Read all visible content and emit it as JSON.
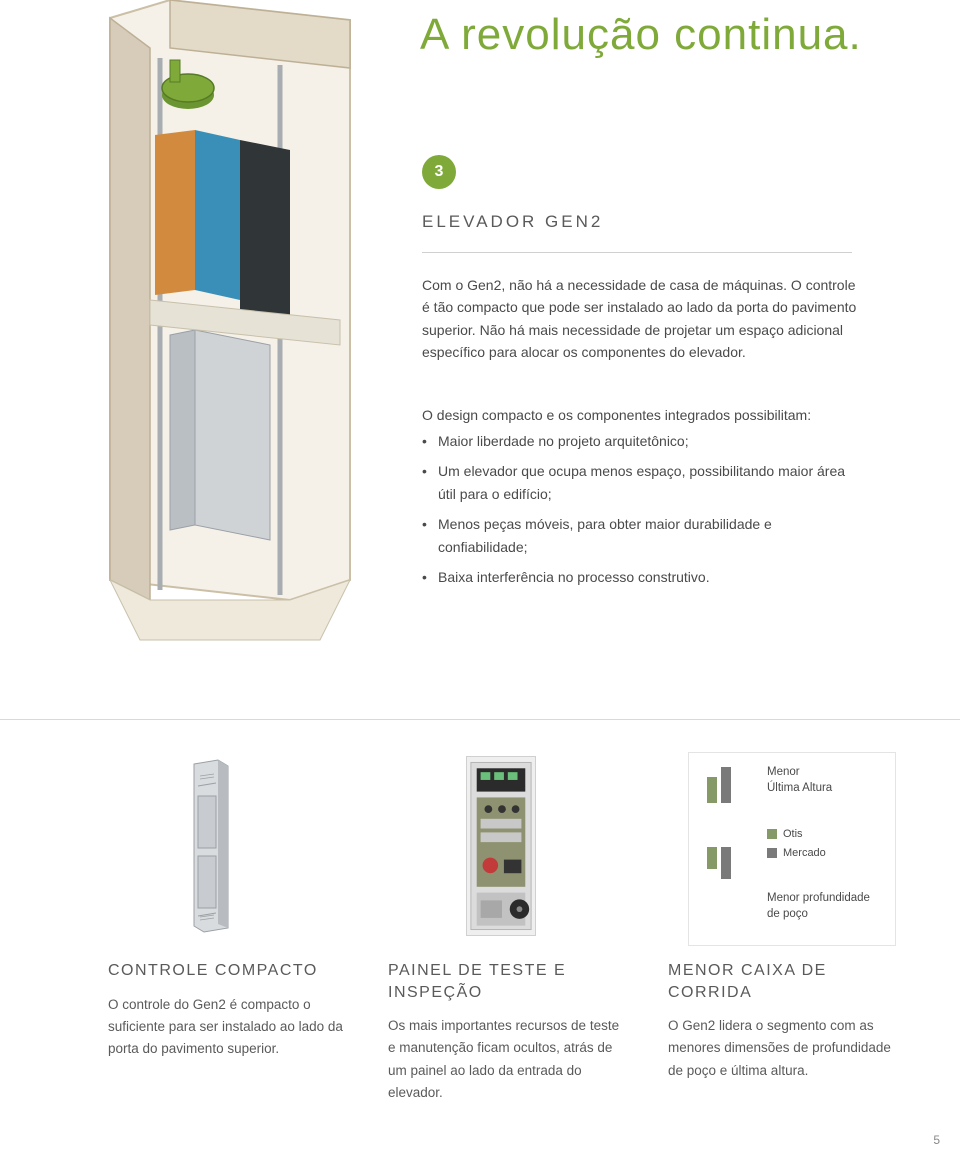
{
  "colors": {
    "accent": "#7faa3a",
    "accent_dark": "#6a9530",
    "heading": "#4a4a4a",
    "body": "#5a5a5a",
    "orange": "#d78a3a",
    "blue": "#3aa0c8",
    "beige_wall": "#d6ccb9",
    "beige_wall_dark": "#c9bea6",
    "elevator_blue": "#3a8fb8",
    "elevator_orange": "#d28b3e",
    "elevator_gray": "#cfd3d6",
    "panel_border": "#d0d0d0",
    "card_border": "#e4e4e4",
    "divider": "#d0d0d0",
    "otis_swatch": "#869a68",
    "mercado_swatch": "#7a7a7a"
  },
  "hero": {
    "title": "A revolução continua.",
    "badge": "3",
    "subtitle": "ELEVADOR GEN2",
    "intro": "Com o Gen2, não há a necessidade de casa de máquinas. O controle é tão compacto que pode ser instalado ao lado da porta do pavimento superior. Não há mais necessidade de projetar um espaço adicional específico para alocar os componentes do elevador.",
    "design_heading": "O design compacto e os componentes integrados possibilitam:",
    "bullets": [
      "Maior liberdade no projeto arquitetônico;",
      "Um elevador que ocupa menos espaço, possibilitando maior área útil para o edifício;",
      "Menos peças móveis, para obter maior durabilidade e confiabilidade;",
      "Baixa interferência no processo construtivo."
    ]
  },
  "dim_card": {
    "top_label_l1": "Menor",
    "top_label_l2": "Última Altura",
    "legend_otis": "Otis",
    "legend_mercado": "Mercado",
    "bottom_label_l1": "Menor profundidade",
    "bottom_label_l2": "de poço",
    "bars": {
      "top_otis_h": 26,
      "top_mercado_h": 36,
      "bottom_otis_h": 22,
      "bottom_mercado_h": 32
    }
  },
  "columns": [
    {
      "title": "CONTROLE COMPACTO",
      "body": "O controle do Gen2 é compacto o suficiente para ser instalado ao lado da porta do pavimento superior."
    },
    {
      "title": "PAINEL DE TESTE E INSPEÇÃO",
      "body": "Os mais importantes recursos de teste e manutenção ficam ocultos, atrás de um painel ao lado da entrada do elevador."
    },
    {
      "title": "MENOR CAIXA DE CORRIDA",
      "body": "O Gen2 lidera o segmento com as menores dimensões de profundidade de poço e última altura."
    }
  ],
  "page_num": "5"
}
